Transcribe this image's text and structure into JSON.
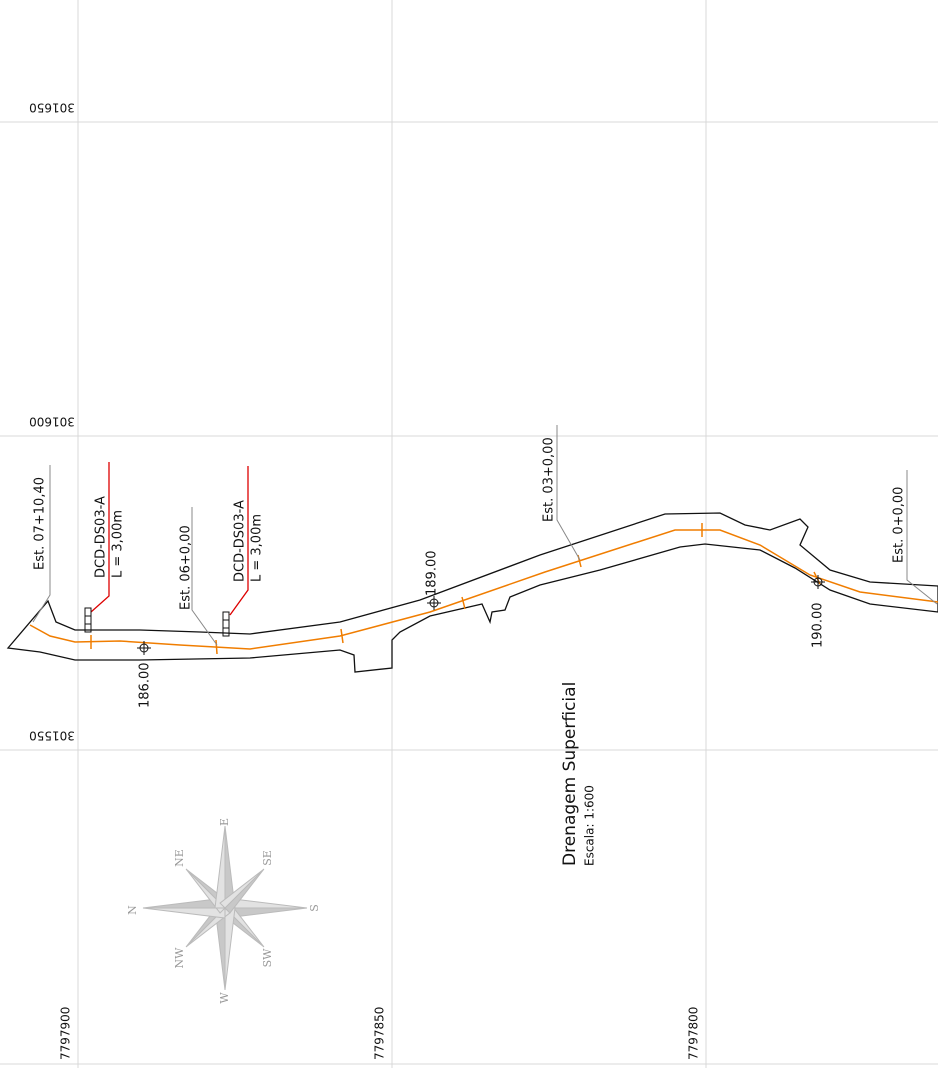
{
  "grid": {
    "northings": [
      "301650",
      "301600",
      "301550"
    ],
    "eastings": [
      "7797900",
      "7797850",
      "7797800"
    ]
  },
  "labels": {
    "est_07": "Est. 07+10,40",
    "dcd_1": "DCD-DS03-A",
    "len_1": "L = 3,00m",
    "est_06": "Est. 06+0,00",
    "dcd_2": "DCD-DS03-A",
    "len_2": "L = 3,00m",
    "elev_189": "189.00",
    "est_03": "Est. 03+0,00",
    "est_0": "Est. 0+0,00",
    "elev_186": "186.00",
    "elev_190": "190.00"
  },
  "title": {
    "text": "Drenagem Superficial",
    "scale": "Escala: 1:600"
  },
  "compass": {
    "n": "N",
    "ne": "NE",
    "e": "E",
    "se": "SE",
    "s": "S",
    "sw": "SW",
    "w": "W",
    "nw": "NW"
  }
}
